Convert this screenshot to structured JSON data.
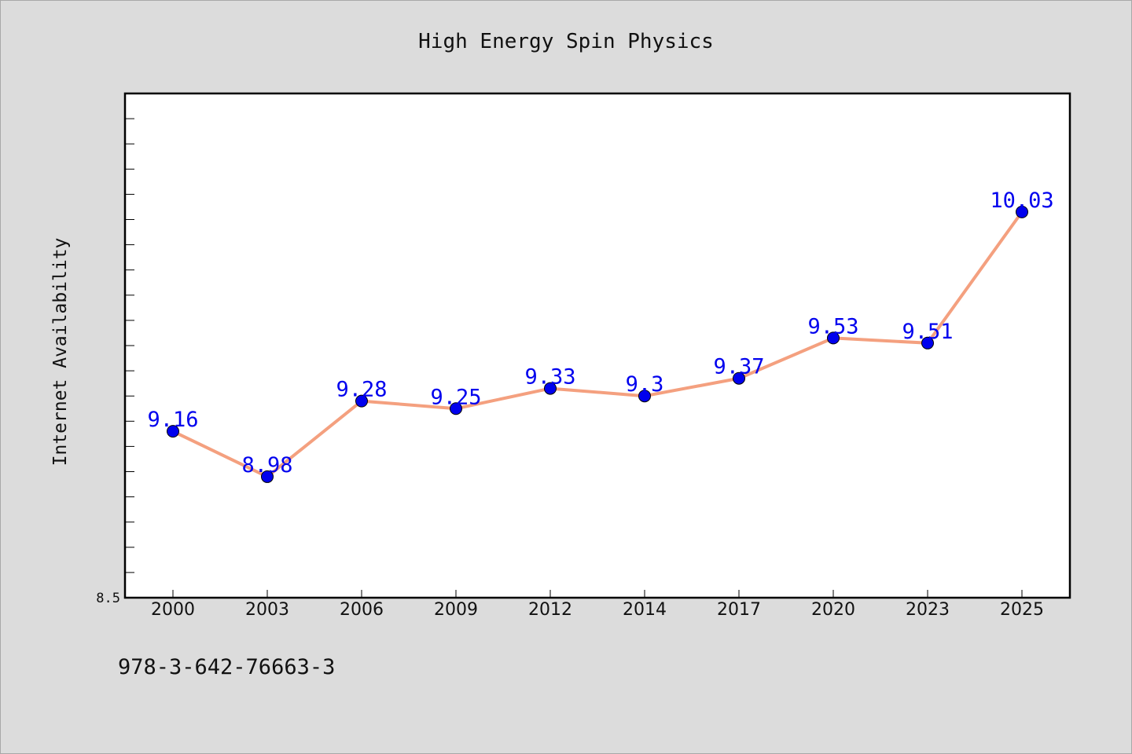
{
  "chart_data": {
    "type": "line",
    "title": "High Energy Spin Physics",
    "xlabel": "",
    "ylabel": "Internet Availability",
    "categories": [
      "2000",
      "2003",
      "2006",
      "2009",
      "2012",
      "2014",
      "2017",
      "2020",
      "2023",
      "2025"
    ],
    "series": [
      {
        "values": [
          9.16,
          8.98,
          9.28,
          9.25,
          9.33,
          9.3,
          9.37,
          9.53,
          9.51,
          10.03
        ]
      }
    ],
    "data_labels": [
      "9.16",
      "8.98",
      "9.28",
      "9.25",
      "9.33",
      "9.3",
      "9.37",
      "9.53",
      "9.51",
      "10.03"
    ],
    "ylim": [
      8.5,
      10.5
    ],
    "y_tick_labels": [
      "8.5"
    ],
    "grid": false,
    "legend": "none",
    "colors": {
      "line": "#f4a07f",
      "marker": "#0000ee",
      "label": "#0000ee",
      "plot_background": "#ffffff",
      "page_background": "#dcdcdc"
    }
  },
  "footer": {
    "isbn": "978-3-642-76663-3"
  }
}
